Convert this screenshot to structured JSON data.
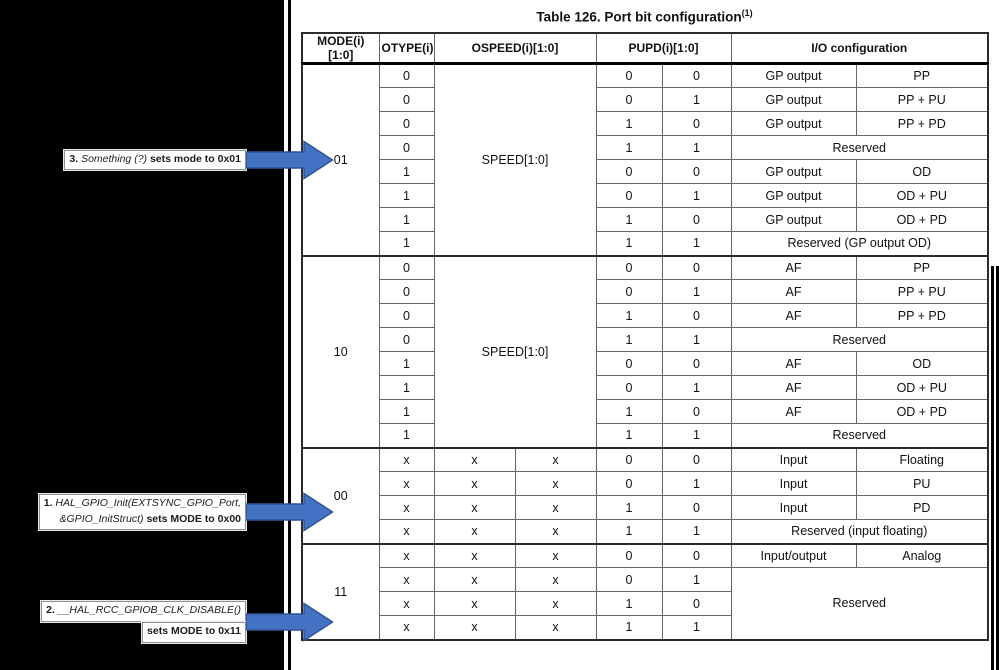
{
  "page": {
    "title": "Table 126. Port bit configuration",
    "title_superscript": "(1)"
  },
  "table": {
    "headers": {
      "mode": "MODE(i)[1:0]",
      "otype": "OTYPE(i)",
      "ospeed": "OSPEED(i)[1:0]",
      "pupd": "PUPD(i)[1:0]",
      "io": "I/O configuration"
    },
    "sections": [
      {
        "mode": "01",
        "speed_label": "SPEED[1:0]",
        "rows": [
          {
            "bits": [
              "0"
            ],
            "pupd": [
              "0",
              "0"
            ],
            "io": [
              "GP output",
              "PP"
            ]
          },
          {
            "bits": [
              "0"
            ],
            "pupd": [
              "0",
              "1"
            ],
            "io": [
              "GP output",
              "PP + PU"
            ]
          },
          {
            "bits": [
              "0"
            ],
            "pupd": [
              "1",
              "0"
            ],
            "io": [
              "GP output",
              "PP + PD"
            ]
          },
          {
            "bits": [
              "0"
            ],
            "pupd": [
              "1",
              "1"
            ],
            "io_merged": "Reserved"
          },
          {
            "bits": [
              "1"
            ],
            "pupd": [
              "0",
              "0"
            ],
            "io": [
              "GP output",
              "OD"
            ]
          },
          {
            "bits": [
              "1"
            ],
            "pupd": [
              "0",
              "1"
            ],
            "io": [
              "GP output",
              "OD + PU"
            ]
          },
          {
            "bits": [
              "1"
            ],
            "pupd": [
              "1",
              "0"
            ],
            "io": [
              "GP output",
              "OD + PD"
            ]
          },
          {
            "bits": [
              "1"
            ],
            "pupd": [
              "1",
              "1"
            ],
            "io_merged": "Reserved (GP output OD)"
          }
        ]
      },
      {
        "mode": "10",
        "speed_label": "SPEED[1:0]",
        "rows": [
          {
            "bits": [
              "0"
            ],
            "pupd": [
              "0",
              "0"
            ],
            "io": [
              "AF",
              "PP"
            ]
          },
          {
            "bits": [
              "0"
            ],
            "pupd": [
              "0",
              "1"
            ],
            "io": [
              "AF",
              "PP + PU"
            ]
          },
          {
            "bits": [
              "0"
            ],
            "pupd": [
              "1",
              "0"
            ],
            "io": [
              "AF",
              "PP + PD"
            ]
          },
          {
            "bits": [
              "0"
            ],
            "pupd": [
              "1",
              "1"
            ],
            "io_merged": "Reserved"
          },
          {
            "bits": [
              "1"
            ],
            "pupd": [
              "0",
              "0"
            ],
            "io": [
              "AF",
              "OD"
            ]
          },
          {
            "bits": [
              "1"
            ],
            "pupd": [
              "0",
              "1"
            ],
            "io": [
              "AF",
              "OD + PU"
            ]
          },
          {
            "bits": [
              "1"
            ],
            "pupd": [
              "1",
              "0"
            ],
            "io": [
              "AF",
              "OD + PD"
            ]
          },
          {
            "bits": [
              "1"
            ],
            "pupd": [
              "1",
              "1"
            ],
            "io_merged": "Reserved"
          }
        ]
      },
      {
        "mode": "00",
        "rows": [
          {
            "bits": [
              "x",
              "x",
              "x"
            ],
            "pupd": [
              "0",
              "0"
            ],
            "io": [
              "Input",
              "Floating"
            ]
          },
          {
            "bits": [
              "x",
              "x",
              "x"
            ],
            "pupd": [
              "0",
              "1"
            ],
            "io": [
              "Input",
              "PU"
            ]
          },
          {
            "bits": [
              "x",
              "x",
              "x"
            ],
            "pupd": [
              "1",
              "0"
            ],
            "io": [
              "Input",
              "PD"
            ]
          },
          {
            "bits": [
              "x",
              "x",
              "x"
            ],
            "pupd": [
              "1",
              "1"
            ],
            "io_merged": "Reserved (input floating)"
          }
        ]
      },
      {
        "mode": "11",
        "rows": [
          {
            "bits": [
              "x",
              "x",
              "x"
            ],
            "pupd": [
              "0",
              "0"
            ],
            "io": [
              "Input/output",
              "Analog"
            ]
          },
          {
            "bits": [
              "x",
              "x",
              "x"
            ],
            "pupd": [
              "0",
              "1"
            ],
            "io_merged": "Reserved",
            "io_rowspan": 3
          },
          {
            "bits": [
              "x",
              "x",
              "x"
            ],
            "pupd": [
              "1",
              "0"
            ],
            "io_skip": true
          },
          {
            "bits": [
              "x",
              "x",
              "x"
            ],
            "pupd": [
              "1",
              "1"
            ],
            "io_skip": true
          }
        ]
      }
    ]
  },
  "annotations": [
    {
      "id": "note-3",
      "target_mode": "01",
      "boxes": [
        {
          "lines": [
            {
              "runs": [
                {
                  "text": "3. ",
                  "style": "b"
                },
                {
                  "text": "Something (?)",
                  "style": "i"
                },
                {
                  "text": " sets mode to 0x01",
                  "style": "b"
                }
              ]
            }
          ]
        }
      ]
    },
    {
      "id": "note-1",
      "target_mode": "00",
      "boxes": [
        {
          "lines": [
            {
              "runs": [
                {
                  "text": "1. ",
                  "style": "b"
                },
                {
                  "text": "HAL_GPIO_Init(EXTSYNC_GPIO_Port,",
                  "style": "i"
                }
              ]
            },
            {
              "align": "right",
              "runs": [
                {
                  "text": "&GPIO_InitStruct)",
                  "style": "i"
                },
                {
                  "text": " sets MODE to 0x00",
                  "style": "b"
                }
              ]
            }
          ]
        }
      ]
    },
    {
      "id": "note-2",
      "target_mode": "11",
      "boxes": [
        {
          "lines": [
            {
              "runs": [
                {
                  "text": "2. ",
                  "style": "b"
                },
                {
                  "text": "__HAL_RCC_GPIOB_CLK_DISABLE()",
                  "style": "i"
                }
              ]
            }
          ]
        },
        {
          "lines": [
            {
              "align": "right",
              "runs": [
                {
                  "text": "sets MODE to 0x11",
                  "style": "b"
                }
              ]
            }
          ]
        }
      ]
    }
  ],
  "colors": {
    "background": "#000000",
    "page": "#FFFFFF",
    "arrow_fill": "#4472C4",
    "arrow_stroke": "#2F5597",
    "grid_line": "#666666",
    "heavy_line": "#000000"
  }
}
